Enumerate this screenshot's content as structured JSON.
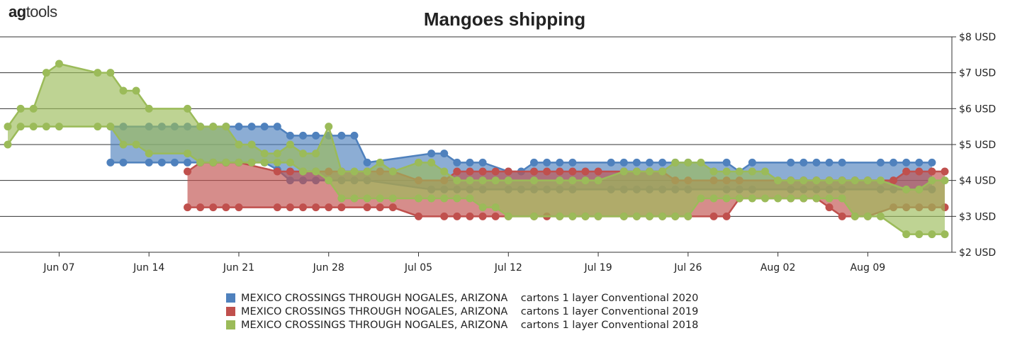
{
  "brand": {
    "name_bold": "ag",
    "name_rest": "tools"
  },
  "colors": {
    "series2020": "#4f81bd",
    "series2019": "#c0504d",
    "series2018": "#9bbb59",
    "grid": "#333333"
  },
  "chart_data": {
    "type": "area",
    "title": "Mangoes shipping",
    "x_ticks": [
      "Jun 07",
      "Jun 14",
      "Jun 21",
      "Jun 28",
      "Jul 05",
      "Jul 12",
      "Jul 19",
      "Jul 26",
      "Aug 02",
      "Aug 09"
    ],
    "y_ticks": [
      "$2 USD",
      "$3 USD",
      "$4 USD",
      "$5 USD",
      "$6 USD",
      "$7 USD",
      "$8 USD"
    ],
    "ylim": [
      2,
      8
    ],
    "xlim": [
      "2020-06-03",
      "2020-08-15"
    ],
    "grid": true,
    "legend_position": "bottom-center",
    "series": [
      {
        "key": "s2020",
        "name": "MEXICO CROSSINGS THROUGH NOGALES, ARIZONA    cartons 1 layer Conventional 2020",
        "color": "#4f81bd",
        "points": [
          [
            "2020-06-11",
            4.5,
            5.5
          ],
          [
            "2020-06-12",
            4.5,
            5.5
          ],
          [
            "2020-06-14",
            4.5,
            5.5
          ],
          [
            "2020-06-15",
            4.5,
            5.5
          ],
          [
            "2020-06-16",
            4.5,
            5.5
          ],
          [
            "2020-06-17",
            4.5,
            5.5
          ],
          [
            "2020-06-18",
            4.5,
            5.5
          ],
          [
            "2020-06-19",
            4.5,
            5.5
          ],
          [
            "2020-06-20",
            4.5,
            5.5
          ],
          [
            "2020-06-21",
            4.5,
            5.5
          ],
          [
            "2020-06-22",
            4.5,
            5.5
          ],
          [
            "2020-06-23",
            4.5,
            5.5
          ],
          [
            "2020-06-24",
            4.3,
            5.5
          ],
          [
            "2020-06-25",
            4.0,
            5.25
          ],
          [
            "2020-06-26",
            4.0,
            5.25
          ],
          [
            "2020-06-27",
            4.0,
            5.25
          ],
          [
            "2020-06-28",
            4.0,
            5.25
          ],
          [
            "2020-06-29",
            4.0,
            5.25
          ],
          [
            "2020-06-30",
            4.0,
            5.25
          ],
          [
            "2020-07-01",
            4.0,
            4.5
          ],
          [
            "2020-07-06",
            3.75,
            4.75
          ],
          [
            "2020-07-07",
            3.75,
            4.75
          ],
          [
            "2020-07-08",
            3.75,
            4.5
          ],
          [
            "2020-07-09",
            3.75,
            4.5
          ],
          [
            "2020-07-10",
            3.75,
            4.5
          ],
          [
            "2020-07-12",
            3.75,
            4.25
          ],
          [
            "2020-07-13",
            3.75,
            4.25
          ],
          [
            "2020-07-14",
            3.75,
            4.5
          ],
          [
            "2020-07-15",
            3.75,
            4.5
          ],
          [
            "2020-07-16",
            3.75,
            4.5
          ],
          [
            "2020-07-17",
            3.75,
            4.5
          ],
          [
            "2020-07-20",
            3.75,
            4.5
          ],
          [
            "2020-07-21",
            3.75,
            4.5
          ],
          [
            "2020-07-22",
            3.75,
            4.5
          ],
          [
            "2020-07-23",
            3.75,
            4.5
          ],
          [
            "2020-07-24",
            3.75,
            4.5
          ],
          [
            "2020-07-25",
            3.75,
            4.5
          ],
          [
            "2020-07-26",
            3.75,
            4.5
          ],
          [
            "2020-07-29",
            3.75,
            4.5
          ],
          [
            "2020-07-30",
            3.75,
            4.25
          ],
          [
            "2020-07-31",
            3.75,
            4.5
          ],
          [
            "2020-08-03",
            3.75,
            4.5
          ],
          [
            "2020-08-04",
            3.75,
            4.5
          ],
          [
            "2020-08-05",
            3.75,
            4.5
          ],
          [
            "2020-08-06",
            3.75,
            4.5
          ],
          [
            "2020-08-07",
            3.75,
            4.5
          ],
          [
            "2020-08-10",
            3.75,
            4.5
          ],
          [
            "2020-08-11",
            3.75,
            4.5
          ],
          [
            "2020-08-12",
            3.75,
            4.5
          ],
          [
            "2020-08-13",
            3.75,
            4.5
          ],
          [
            "2020-08-14",
            3.75,
            4.5
          ]
        ]
      },
      {
        "key": "s2019",
        "name": "MEXICO CROSSINGS THROUGH NOGALES, ARIZONA    cartons 1 layer Conventional 2019",
        "color": "#c0504d",
        "points": [
          [
            "2020-06-17",
            3.25,
            4.25
          ],
          [
            "2020-06-18",
            3.25,
            4.5
          ],
          [
            "2020-06-19",
            3.25,
            4.5
          ],
          [
            "2020-06-20",
            3.25,
            4.5
          ],
          [
            "2020-06-21",
            3.25,
            4.5
          ],
          [
            "2020-06-24",
            3.25,
            4.25
          ],
          [
            "2020-06-25",
            3.25,
            4.25
          ],
          [
            "2020-06-26",
            3.25,
            4.25
          ],
          [
            "2020-06-27",
            3.25,
            4.25
          ],
          [
            "2020-06-28",
            3.25,
            4.25
          ],
          [
            "2020-06-29",
            3.25,
            4.25
          ],
          [
            "2020-07-01",
            3.25,
            4.25
          ],
          [
            "2020-07-02",
            3.25,
            4.25
          ],
          [
            "2020-07-03",
            3.25,
            4.25
          ],
          [
            "2020-07-05",
            3.0,
            4.0
          ],
          [
            "2020-07-07",
            3.0,
            4.0
          ],
          [
            "2020-07-08",
            3.0,
            4.25
          ],
          [
            "2020-07-09",
            3.0,
            4.25
          ],
          [
            "2020-07-10",
            3.0,
            4.25
          ],
          [
            "2020-07-11",
            3.0,
            4.25
          ],
          [
            "2020-07-12",
            3.0,
            4.25
          ],
          [
            "2020-07-14",
            3.0,
            4.25
          ],
          [
            "2020-07-15",
            3.0,
            4.25
          ],
          [
            "2020-07-16",
            3.0,
            4.25
          ],
          [
            "2020-07-17",
            3.0,
            4.25
          ],
          [
            "2020-07-18",
            3.0,
            4.25
          ],
          [
            "2020-07-19",
            3.0,
            4.25
          ],
          [
            "2020-07-21",
            3.0,
            4.25
          ],
          [
            "2020-07-22",
            3.0,
            4.25
          ],
          [
            "2020-07-23",
            3.0,
            4.25
          ],
          [
            "2020-07-24",
            3.0,
            4.25
          ],
          [
            "2020-07-25",
            3.0,
            4.0
          ],
          [
            "2020-07-26",
            3.0,
            4.0
          ],
          [
            "2020-07-28",
            3.0,
            4.0
          ],
          [
            "2020-07-29",
            3.0,
            4.0
          ],
          [
            "2020-07-30",
            3.5,
            4.0
          ],
          [
            "2020-08-03",
            3.5,
            4.0
          ],
          [
            "2020-08-04",
            3.5,
            4.0
          ],
          [
            "2020-08-05",
            3.5,
            4.0
          ],
          [
            "2020-08-06",
            3.25,
            4.0
          ],
          [
            "2020-08-07",
            3.0,
            4.0
          ],
          [
            "2020-08-08",
            3.0,
            4.0
          ],
          [
            "2020-08-09",
            3.0,
            4.0
          ],
          [
            "2020-08-11",
            3.25,
            4.0
          ],
          [
            "2020-08-12",
            3.25,
            4.25
          ],
          [
            "2020-08-13",
            3.25,
            4.25
          ],
          [
            "2020-08-14",
            3.25,
            4.25
          ],
          [
            "2020-08-15",
            3.25,
            4.25
          ]
        ]
      },
      {
        "key": "s2018",
        "name": "MEXICO CROSSINGS THROUGH NOGALES, ARIZONA    cartons 1 layer Conventional 2018",
        "color": "#9bbb59",
        "points": [
          [
            "2020-06-03",
            5.0,
            5.5
          ],
          [
            "2020-06-04",
            5.5,
            6.0
          ],
          [
            "2020-06-05",
            5.5,
            6.0
          ],
          [
            "2020-06-06",
            5.5,
            7.0
          ],
          [
            "2020-06-07",
            5.5,
            7.25
          ],
          [
            "2020-06-10",
            5.5,
            7.0
          ],
          [
            "2020-06-11",
            5.5,
            7.0
          ],
          [
            "2020-06-12",
            5.0,
            6.5
          ],
          [
            "2020-06-13",
            5.0,
            6.5
          ],
          [
            "2020-06-14",
            4.75,
            6.0
          ],
          [
            "2020-06-17",
            4.75,
            6.0
          ],
          [
            "2020-06-18",
            4.5,
            5.5
          ],
          [
            "2020-06-19",
            4.5,
            5.5
          ],
          [
            "2020-06-20",
            4.5,
            5.5
          ],
          [
            "2020-06-21",
            4.5,
            5.0
          ],
          [
            "2020-06-22",
            4.5,
            5.0
          ],
          [
            "2020-06-23",
            4.5,
            4.75
          ],
          [
            "2020-06-24",
            4.5,
            4.75
          ],
          [
            "2020-06-25",
            4.5,
            5.0
          ],
          [
            "2020-06-26",
            4.25,
            4.75
          ],
          [
            "2020-06-27",
            4.25,
            4.75
          ],
          [
            "2020-06-28",
            4.0,
            5.5
          ],
          [
            "2020-06-29",
            3.5,
            4.25
          ],
          [
            "2020-06-30",
            3.5,
            4.25
          ],
          [
            "2020-07-01",
            3.5,
            4.25
          ],
          [
            "2020-07-02",
            3.5,
            4.5
          ],
          [
            "2020-07-03",
            3.5,
            4.25
          ],
          [
            "2020-07-05",
            3.5,
            4.5
          ],
          [
            "2020-07-06",
            3.5,
            4.5
          ],
          [
            "2020-07-07",
            3.5,
            4.25
          ],
          [
            "2020-07-08",
            3.5,
            4.0
          ],
          [
            "2020-07-09",
            3.5,
            4.0
          ],
          [
            "2020-07-10",
            3.25,
            4.0
          ],
          [
            "2020-07-11",
            3.25,
            4.0
          ],
          [
            "2020-07-12",
            3.0,
            4.0
          ],
          [
            "2020-07-14",
            3.0,
            4.0
          ],
          [
            "2020-07-16",
            3.0,
            4.0
          ],
          [
            "2020-07-17",
            3.0,
            4.0
          ],
          [
            "2020-07-18",
            3.0,
            4.0
          ],
          [
            "2020-07-19",
            3.0,
            4.0
          ],
          [
            "2020-07-21",
            3.0,
            4.25
          ],
          [
            "2020-07-22",
            3.0,
            4.25
          ],
          [
            "2020-07-23",
            3.0,
            4.25
          ],
          [
            "2020-07-24",
            3.0,
            4.25
          ],
          [
            "2020-07-25",
            3.0,
            4.5
          ],
          [
            "2020-07-26",
            3.0,
            4.5
          ],
          [
            "2020-07-27",
            3.5,
            4.5
          ],
          [
            "2020-07-28",
            3.5,
            4.25
          ],
          [
            "2020-07-29",
            3.5,
            4.25
          ],
          [
            "2020-07-30",
            3.5,
            4.25
          ],
          [
            "2020-07-31",
            3.5,
            4.25
          ],
          [
            "2020-08-01",
            3.5,
            4.25
          ],
          [
            "2020-08-02",
            3.5,
            4.0
          ],
          [
            "2020-08-03",
            3.5,
            4.0
          ],
          [
            "2020-08-04",
            3.5,
            4.0
          ],
          [
            "2020-08-05",
            3.5,
            4.0
          ],
          [
            "2020-08-06",
            3.5,
            4.0
          ],
          [
            "2020-08-07",
            3.5,
            4.0
          ],
          [
            "2020-08-08",
            3.0,
            4.0
          ],
          [
            "2020-08-09",
            3.0,
            4.0
          ],
          [
            "2020-08-10",
            3.0,
            4.0
          ],
          [
            "2020-08-12",
            2.5,
            3.75
          ],
          [
            "2020-08-13",
            2.5,
            3.75
          ],
          [
            "2020-08-14",
            2.5,
            4.0
          ],
          [
            "2020-08-15",
            2.5,
            4.0
          ]
        ]
      }
    ]
  }
}
